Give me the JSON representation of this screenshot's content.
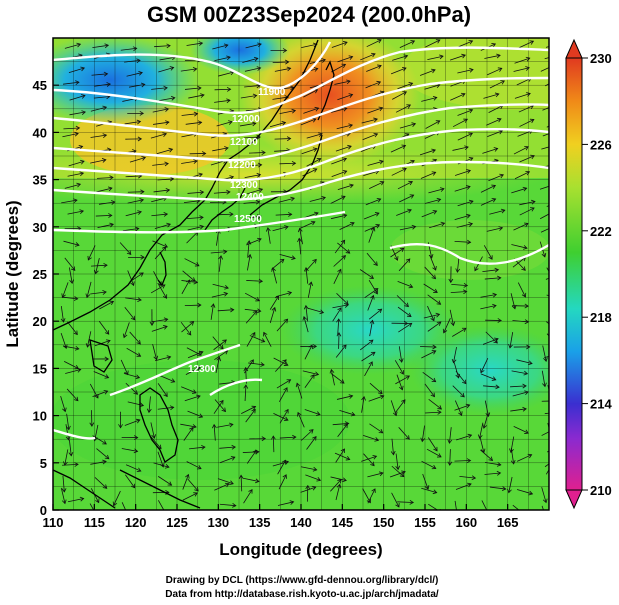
{
  "chart_data": {
    "type": "heatmap",
    "title": "GSM 00Z23Sep2024 (200.0hPa)",
    "xlabel": "Longitude (degrees)",
    "ylabel": "Latitude (degrees)",
    "xlim": [
      110,
      170
    ],
    "ylim": [
      0,
      50
    ],
    "xticks": [
      110,
      115,
      120,
      125,
      130,
      135,
      140,
      145,
      150,
      155,
      160,
      165
    ],
    "yticks": [
      0,
      5,
      10,
      15,
      20,
      25,
      30,
      35,
      40,
      45
    ],
    "grid": true,
    "colorbar": {
      "range": [
        210,
        230
      ],
      "ticks": [
        210,
        214,
        218,
        222,
        226,
        230
      ],
      "colors": [
        "#e0208f",
        "#3a2fd0",
        "#1aa0e8",
        "#24d8c0",
        "#3fcf30",
        "#a8e030",
        "#f0d020",
        "#f08a18",
        "#e03a20"
      ],
      "placement": "right"
    },
    "contour_labels": [
      "11900",
      "12000",
      "12100",
      "12200",
      "12300",
      "12400",
      "12500",
      "12300"
    ],
    "overlays": [
      "streamlines",
      "geopotential-height-contours",
      "coastlines"
    ]
  },
  "footer": {
    "line1": "Drawing by DCL (https://www.gfd-dennou.org/library/dcl/)",
    "line2": "Data from http://database.rish.kyoto-u.ac.jp/arch/jmadata/"
  }
}
